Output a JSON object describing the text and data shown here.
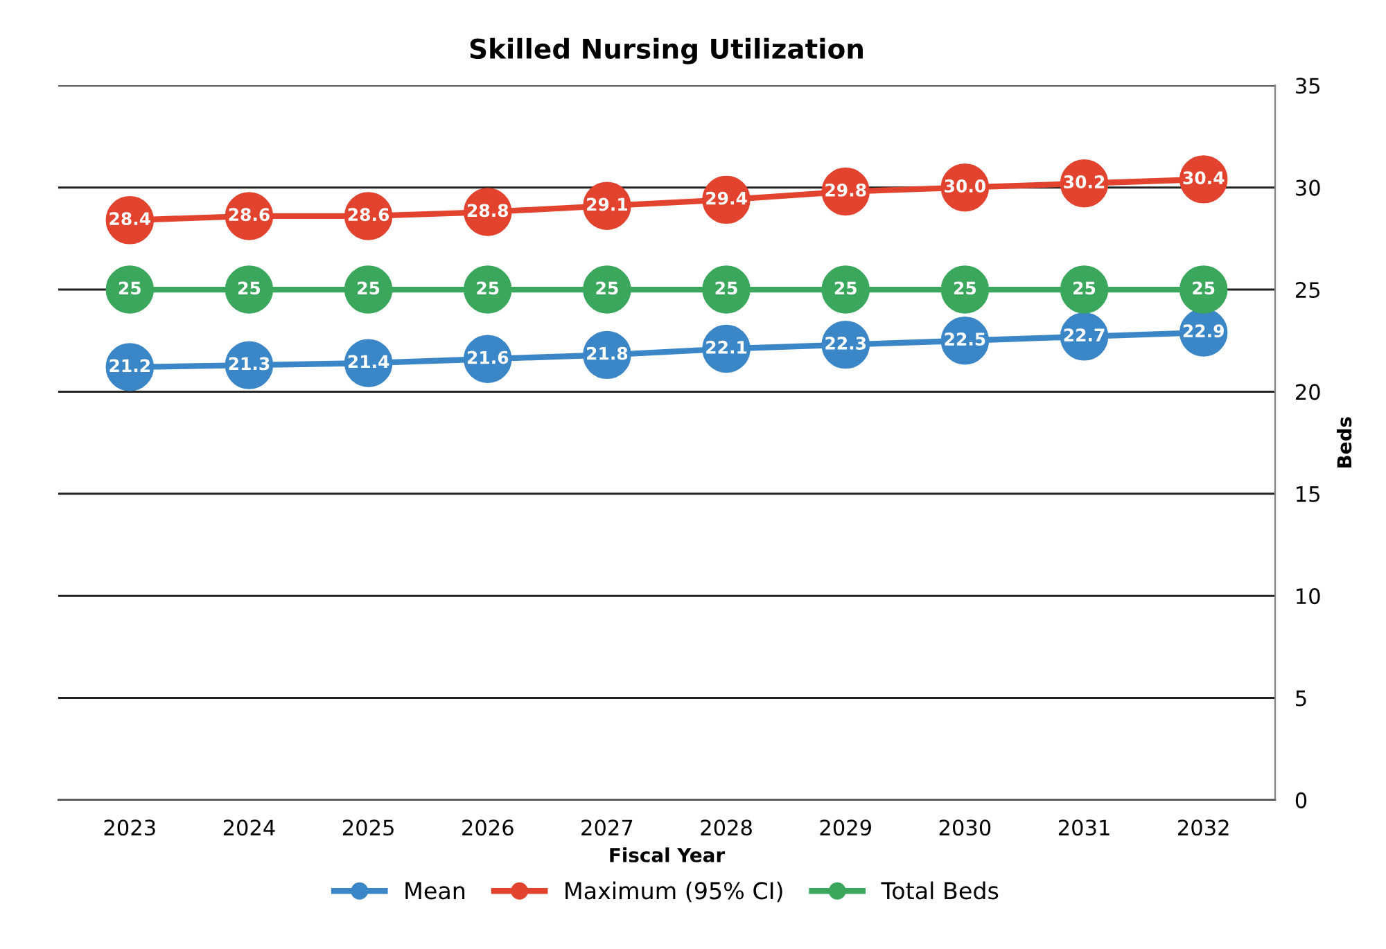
{
  "chart_data": {
    "type": "line",
    "title": "Skilled Nursing Utilization",
    "xlabel": "Fiscal Year",
    "y2label": "Beds",
    "categories": [
      "2023",
      "2024",
      "2025",
      "2026",
      "2027",
      "2028",
      "2029",
      "2030",
      "2031",
      "2032"
    ],
    "series": [
      {
        "name": "Mean",
        "color": "#3b86c6",
        "axis": "y2",
        "values": [
          21.2,
          21.3,
          21.4,
          21.6,
          21.8,
          22.1,
          22.3,
          22.5,
          22.7,
          22.9
        ],
        "value_labels": [
          "21.2",
          "21.3",
          "21.4",
          "21.6",
          "21.8",
          "22.1",
          "22.3",
          "22.5",
          "22.7",
          "22.9"
        ]
      },
      {
        "name": "Maximum (95% CI)",
        "color": "#e2432f",
        "axis": "y2",
        "values": [
          28.4,
          28.6,
          28.6,
          28.8,
          29.1,
          29.4,
          29.8,
          30.0,
          30.2,
          30.4
        ],
        "value_labels": [
          "28.4",
          "28.6",
          "28.6",
          "28.8",
          "29.1",
          "29.4",
          "29.8",
          "30.0",
          "30.2",
          "30.4"
        ]
      },
      {
        "name": "Total Beds",
        "color": "#3aa75c",
        "axis": "y2",
        "values": [
          25,
          25,
          25,
          25,
          25,
          25,
          25,
          25,
          25,
          25
        ],
        "value_labels": [
          "25",
          "25",
          "25",
          "25",
          "25",
          "25",
          "25",
          "25",
          "25",
          "25"
        ]
      }
    ],
    "y2lim": [
      0,
      35
    ],
    "y2ticks": [
      0,
      5,
      10,
      15,
      20,
      25,
      30,
      35
    ],
    "grid": "y",
    "legend": "bottom",
    "marker": "circle",
    "line_style": "solid"
  }
}
